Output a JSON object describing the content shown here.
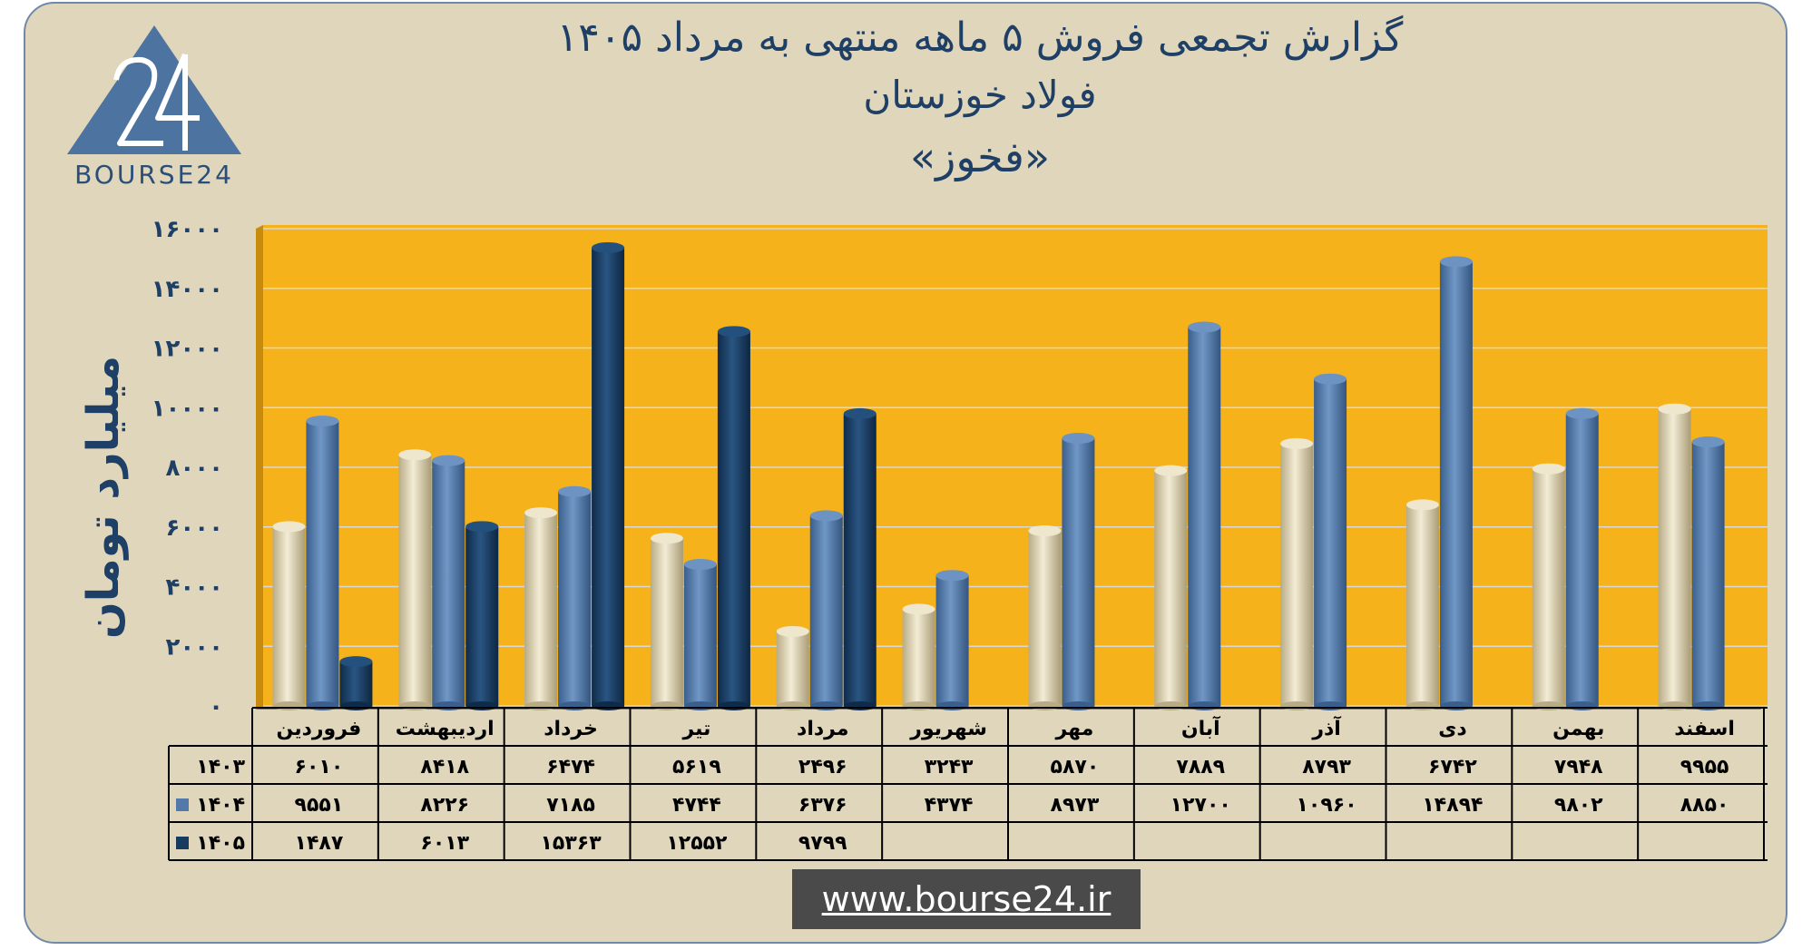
{
  "titles": {
    "line1": "گزارش تجمعی فروش ۵ ماهه منتهی به مرداد ۱۴۰۵",
    "line2": "فولاد خوزستان",
    "line3": "«فخوز»"
  },
  "logo": {
    "mark": "24",
    "text": "BOURSE24"
  },
  "website": "www.bourse24.ir",
  "colors": {
    "background": "#e0d6bb",
    "plot_area": "#f6b21b",
    "series_1403": "#ddd2b0",
    "series_1404": "#5279aa",
    "series_1405": "#173a61",
    "title_text": "#1e3f66"
  },
  "chart_data": {
    "type": "bar",
    "ylabel": "میلیارد تومان",
    "xlabel": "",
    "ylim": [
      0,
      16000
    ],
    "y_ticks": [
      0,
      2000,
      4000,
      6000,
      8000,
      10000,
      12000,
      14000,
      16000
    ],
    "y_tick_labels": [
      "۰",
      "۲۰۰۰",
      "۴۰۰۰",
      "۶۰۰۰",
      "۸۰۰۰",
      "۱۰۰۰۰",
      "۱۲۰۰۰",
      "۱۴۰۰۰",
      "۱۶۰۰۰"
    ],
    "grid": true,
    "legend": "data-table",
    "categories": [
      "فروردین",
      "اردیبهشت",
      "خرداد",
      "تیر",
      "مرداد",
      "شهریور",
      "مهر",
      "آبان",
      "آذر",
      "دی",
      "بهمن",
      "اسفند"
    ],
    "series": [
      {
        "name": "۱۴۰۳",
        "values": [
          6010,
          8418,
          6474,
          5619,
          2496,
          3243,
          5870,
          7889,
          8793,
          6742,
          7948,
          9955
        ],
        "labels": [
          "۶۰۱۰",
          "۸۴۱۸",
          "۶۴۷۴",
          "۵۶۱۹",
          "۲۴۹۶",
          "۳۲۴۳",
          "۵۸۷۰",
          "۷۸۸۹",
          "۸۷۹۳",
          "۶۷۴۲",
          "۷۹۴۸",
          "۹۹۵۵"
        ]
      },
      {
        "name": "۱۴۰۴",
        "values": [
          9551,
          8226,
          7185,
          4744,
          6376,
          4374,
          8973,
          12700,
          10960,
          14894,
          9802,
          8850
        ],
        "labels": [
          "۹۵۵۱",
          "۸۲۲۶",
          "۷۱۸۵",
          "۴۷۴۴",
          "۶۳۷۶",
          "۴۳۷۴",
          "۸۹۷۳",
          "۱۲۷۰۰",
          "۱۰۹۶۰",
          "۱۴۸۹۴",
          "۹۸۰۲",
          "۸۸۵۰"
        ]
      },
      {
        "name": "۱۴۰۵",
        "values": [
          1487,
          6013,
          15363,
          12552,
          9799,
          null,
          null,
          null,
          null,
          null,
          null,
          null
        ],
        "labels": [
          "۱۴۸۷",
          "۶۰۱۳",
          "۱۵۳۶۳",
          "۱۲۵۵۲",
          "۹۷۹۹",
          "",
          "",
          "",
          "",
          "",
          "",
          ""
        ]
      }
    ]
  }
}
